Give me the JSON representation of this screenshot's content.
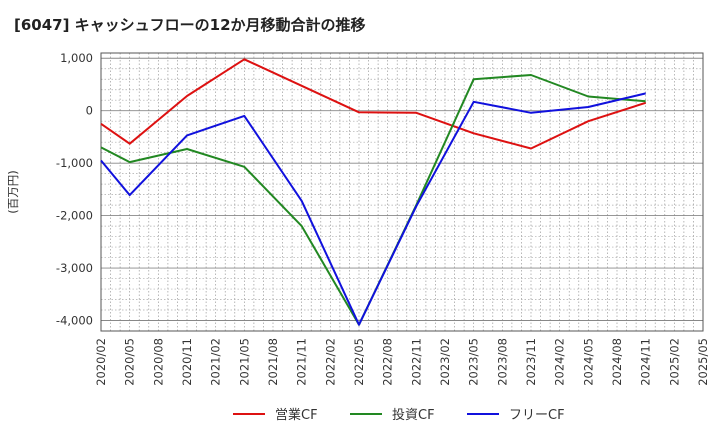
{
  "chart_data": {
    "type": "line",
    "title": "[6047]  キャッシュフローの12か月移動合計の推移",
    "ylabel": "(百万円)",
    "xlabel": "",
    "ylim": [
      -4200,
      1100
    ],
    "yticks": [
      1000,
      0,
      -1000,
      -2000,
      -3000,
      -4000
    ],
    "ytick_labels": [
      "1,000",
      "0",
      "-1,000",
      "-2,000",
      "-3,000",
      "-4,000"
    ],
    "categories": [
      "2020/02",
      "2020/05",
      "2020/08",
      "2020/11",
      "2021/02",
      "2021/05",
      "2021/08",
      "2021/11",
      "2022/02",
      "2022/05",
      "2022/08",
      "2022/11",
      "2023/02",
      "2023/05",
      "2023/08",
      "2023/11",
      "2024/02",
      "2024/05",
      "2024/08",
      "2024/11",
      "2025/02",
      "2025/05"
    ],
    "series": [
      {
        "name": "営業CF",
        "color": "#dd1111",
        "values": [
          -250,
          -630,
          null,
          280,
          null,
          980,
          null,
          null,
          null,
          -30,
          null,
          -40,
          null,
          -430,
          null,
          -720,
          null,
          -200,
          null,
          150,
          null,
          null
        ]
      },
      {
        "name": "投資CF",
        "color": "#228822",
        "values": [
          -700,
          -980,
          null,
          -730,
          null,
          -1070,
          null,
          -2200,
          null,
          -4080,
          null,
          -1800,
          null,
          600,
          null,
          680,
          null,
          270,
          null,
          180,
          null,
          null
        ]
      },
      {
        "name": "フリーCF",
        "color": "#1111dd",
        "values": [
          -950,
          -1610,
          null,
          -470,
          null,
          -100,
          null,
          -1720,
          null,
          -4080,
          null,
          -1820,
          null,
          170,
          null,
          -40,
          null,
          70,
          null,
          330,
          null,
          null
        ]
      }
    ],
    "grid": true,
    "legend_position": "bottom"
  }
}
